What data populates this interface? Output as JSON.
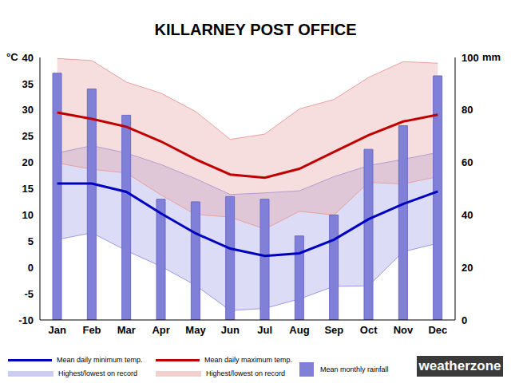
{
  "chart_data": {
    "type": "climate",
    "title": "KILLARNEY POST OFFICE",
    "y_label": "°C",
    "y2_label": "mm",
    "annotations": [
      "weatherzone"
    ],
    "categories": [
      "Jan",
      "Feb",
      "Mar",
      "Apr",
      "May",
      "Jun",
      "Jul",
      "Aug",
      "Sep",
      "Oct",
      "Nov",
      "Dec"
    ],
    "ylim": [
      -10,
      40
    ],
    "yticks": [
      -10,
      -5,
      0,
      5,
      10,
      15,
      20,
      25,
      30,
      35,
      40
    ],
    "y2lim": [
      0,
      100
    ],
    "y2ticks": [
      0,
      20,
      40,
      60,
      80,
      100
    ],
    "grid": false,
    "series": [
      {
        "name": "Mean daily minimum temp.",
        "type": "line",
        "color": "#0000c0",
        "values": [
          16.0,
          16.0,
          14.4,
          10.3,
          6.5,
          3.6,
          2.2,
          2.7,
          5.3,
          9.2,
          12.1,
          14.5
        ]
      },
      {
        "name": "Mean daily maximum temp.",
        "type": "line",
        "color": "#c00000",
        "values": [
          29.5,
          28.3,
          26.8,
          24.0,
          20.6,
          17.7,
          17.1,
          18.8,
          22.0,
          25.2,
          27.8,
          29.1
        ]
      },
      {
        "name": "Highest/lowest on record",
        "type": "area",
        "color": "#9a9ae6",
        "values": [
          [
            5.3,
            21.8
          ],
          [
            6.6,
            23.2
          ],
          [
            3.2,
            21.8
          ],
          [
            0.2,
            19.6
          ],
          [
            -3.4,
            16.9
          ],
          [
            -8.2,
            13.9
          ],
          [
            -7.8,
            14.2
          ],
          [
            -6.0,
            14.6
          ],
          [
            -3.6,
            17.3
          ],
          [
            -3.5,
            19.4
          ],
          [
            3.0,
            20.6
          ],
          [
            4.6,
            21.9
          ]
        ]
      },
      {
        "name": "Highest/lowest on record",
        "type": "area",
        "color": "#e8a0a0",
        "values": [
          [
            19.9,
            39.8
          ],
          [
            18.7,
            39.4
          ],
          [
            18.0,
            35.3
          ],
          [
            13.8,
            33.2
          ],
          [
            10.1,
            29.7
          ],
          [
            9.6,
            24.4
          ],
          [
            7.3,
            25.4
          ],
          [
            10.7,
            30.2
          ],
          [
            10.0,
            32.0
          ],
          [
            16.2,
            36.2
          ],
          [
            15.9,
            39.2
          ],
          [
            17.3,
            38.9
          ]
        ]
      },
      {
        "name": "Mean monthly rainfall",
        "type": "bar",
        "axis": "y2",
        "color": "#8080d8",
        "values": [
          94,
          88,
          78,
          46,
          45,
          47,
          46,
          32,
          40,
          65,
          74,
          93
        ]
      }
    ]
  }
}
